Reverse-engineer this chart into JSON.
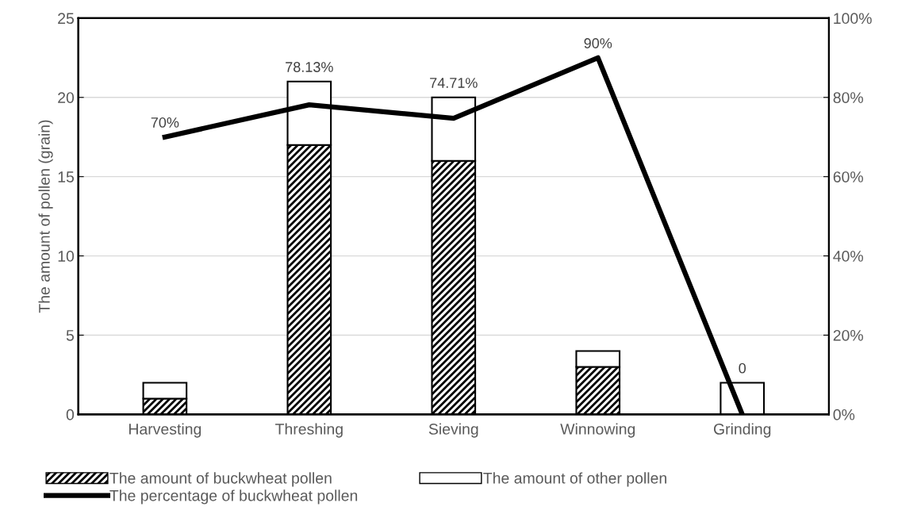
{
  "chart_data": {
    "type": "bar",
    "stacked": true,
    "ylabel": "The amount of pollen (grain)",
    "categories": [
      "Harvesting",
      "Threshing",
      "Sieving",
      "Winnowing",
      "Grinding"
    ],
    "series": [
      {
        "name": "The amount of buckwheat pollen",
        "color": "#000000",
        "values": [
          1,
          17,
          16,
          3,
          0
        ]
      },
      {
        "name": "The amount of other pollen",
        "color": "#ffffff",
        "values": [
          1,
          4,
          4,
          1,
          2
        ]
      },
      {
        "name": "The percentage of buckwheat pollen",
        "type": "line",
        "axis": "y2",
        "color": "#000000",
        "values": [
          70,
          78.13,
          74.71,
          90,
          0
        ],
        "value_labels": [
          "70%",
          "78.13%",
          "74.71%",
          "90%",
          "0"
        ]
      }
    ],
    "ylim": [
      0,
      25
    ],
    "yticks": [
      0,
      5,
      10,
      15,
      20,
      25
    ],
    "y2lim": [
      0,
      100
    ],
    "y2ticks": [
      {
        "value": 0,
        "label": "0%"
      },
      {
        "value": 20,
        "label": "20%"
      },
      {
        "value": 40,
        "label": "40%"
      },
      {
        "value": 60,
        "label": "60%"
      },
      {
        "value": 80,
        "label": "80%"
      },
      {
        "value": 100,
        "label": "100%"
      }
    ],
    "grid": "y",
    "legend": "bottom",
    "marker": "none",
    "line_style": "solid"
  }
}
